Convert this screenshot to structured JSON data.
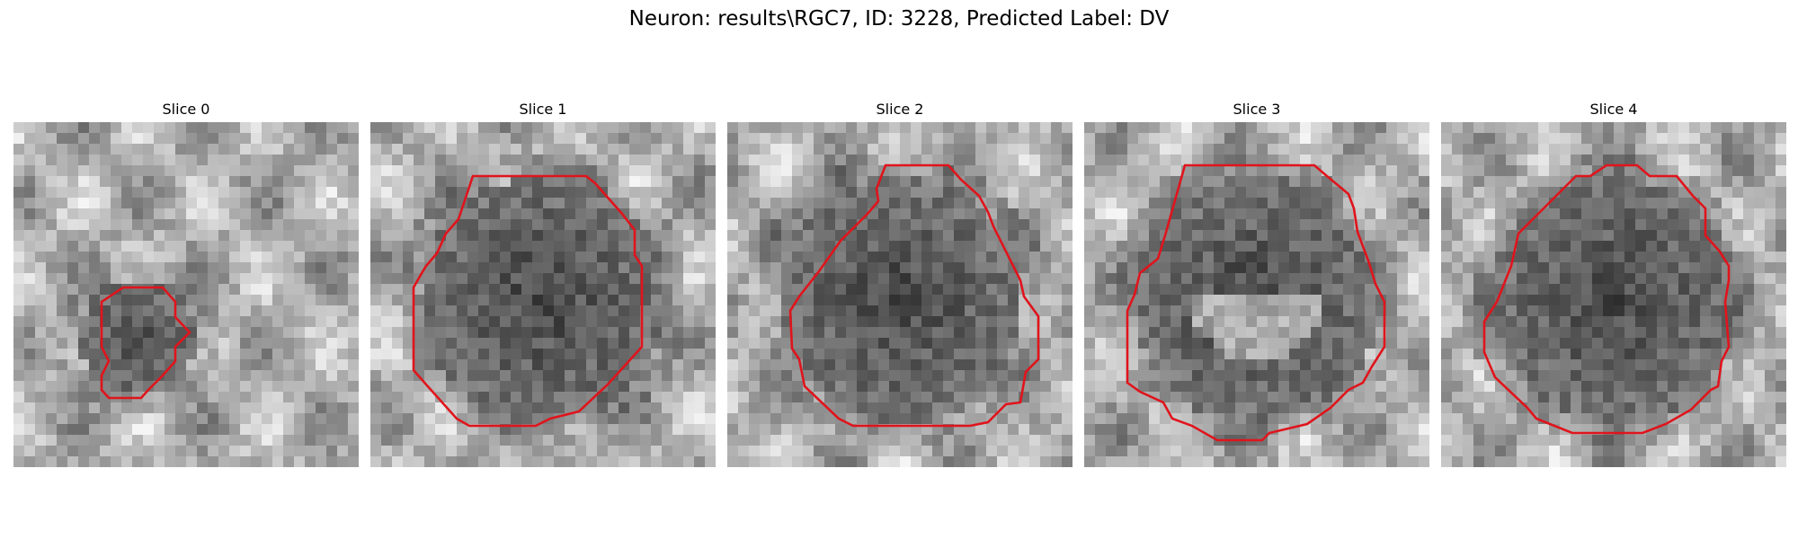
{
  "figure": {
    "title": "Neuron: results\\RGC7, ID: 3228, Predicted Label: DV",
    "contour_color": "#e0141c"
  },
  "panels": [
    {
      "title": "Slice 0",
      "kind": "small",
      "seed": 11
    },
    {
      "title": "Slice 1",
      "kind": "big",
      "seed": 23
    },
    {
      "title": "Slice 2",
      "kind": "big",
      "seed": 37
    },
    {
      "title": "Slice 3",
      "kind": "big",
      "seed": 41
    },
    {
      "title": "Slice 4",
      "kind": "big",
      "seed": 59
    }
  ]
}
